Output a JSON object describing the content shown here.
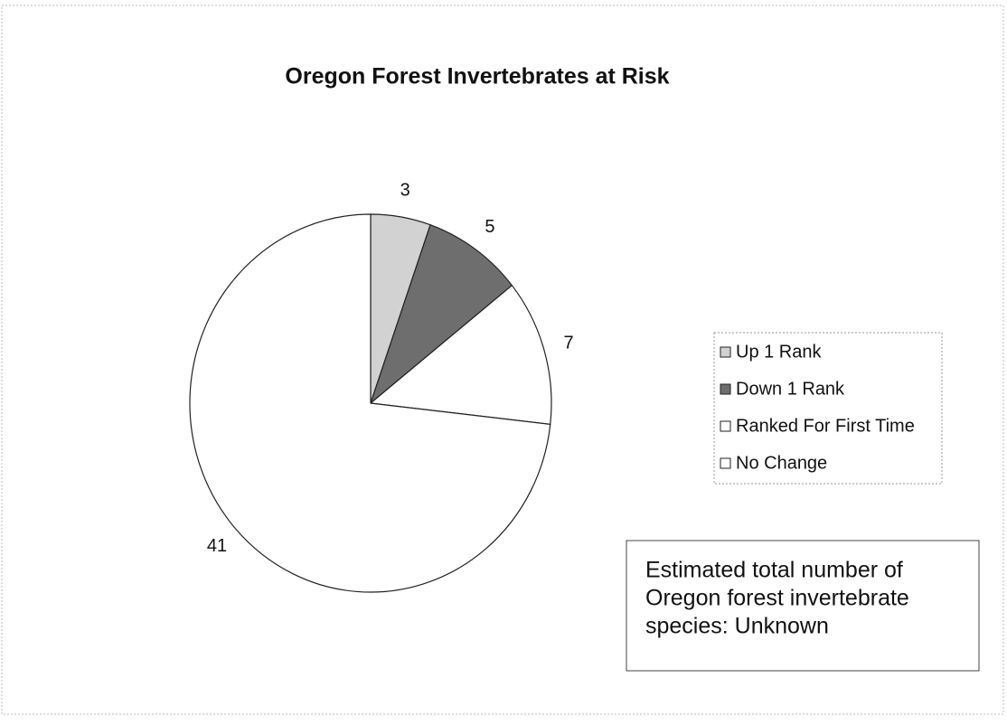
{
  "chart_data": {
    "type": "pie",
    "title": "Oregon Forest Invertebrates at Risk",
    "categories": [
      "Up 1 Rank",
      "Down 1 Rank",
      "Ranked For First Time",
      "No Change"
    ],
    "values": [
      3,
      5,
      7,
      41
    ],
    "colors": [
      "#d2d2d2",
      "#6e6e6e",
      "#ffffff",
      "#ffffff"
    ],
    "legend": "right",
    "annotation": [
      "Estimated total number of",
      "Oregon forest invertebrate",
      "species: Unknown"
    ]
  }
}
